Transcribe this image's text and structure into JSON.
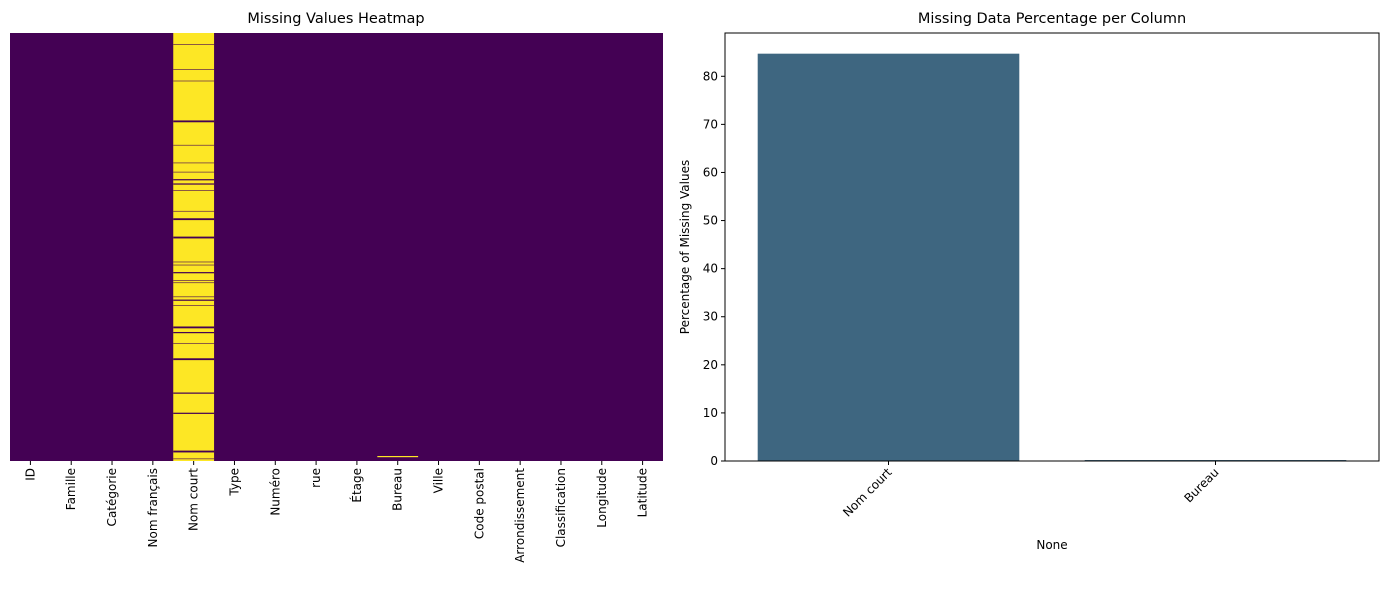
{
  "chart_data": [
    {
      "type": "heatmap",
      "title": "Missing Values Heatmap",
      "columns": [
        "ID",
        "Famille",
        "Catégorie",
        "Nom français",
        "Nom court",
        "Type",
        "Numéro",
        "rue",
        "Étage",
        "Bureau",
        "Ville",
        "Code postal",
        "Arrondissement",
        "Classification",
        "Longitude",
        "Latitude"
      ],
      "missing_fraction": [
        0,
        0,
        0,
        0,
        0.848,
        0,
        0,
        0,
        0,
        0.002,
        0,
        0,
        0,
        0,
        0,
        0
      ],
      "colors": {
        "present": "#440154",
        "missing": "#fde725"
      },
      "grid": false
    },
    {
      "type": "bar",
      "title": "Missing Data Percentage per Column",
      "categories": [
        "Nom court",
        "Bureau"
      ],
      "values": [
        84.7,
        0.2
      ],
      "xlabel": "None",
      "ylabel": "Percentage of Missing Values",
      "ylim": [
        0,
        89
      ],
      "yticks": [
        0,
        10,
        20,
        30,
        40,
        50,
        60,
        70,
        80
      ],
      "bar_color": "#3e6680",
      "grid": false
    }
  ]
}
